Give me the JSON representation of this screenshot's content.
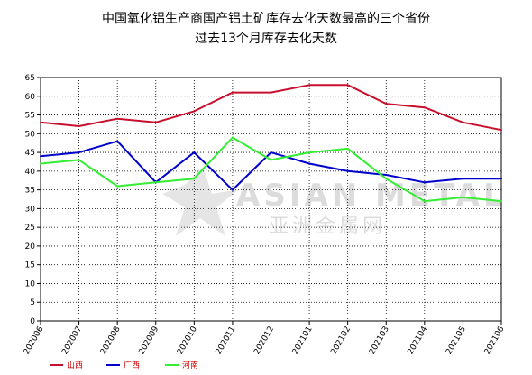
{
  "title": {
    "line1": "中国氧化铝生产商国产铝土矿库存去化天数最高的三个省份",
    "line2": "过去13个月库存去化天数"
  },
  "watermark": {
    "main": "ASIAN METAL",
    "sub": "亚洲金属网"
  },
  "chart_data": {
    "type": "line",
    "categories": [
      "202006",
      "202007",
      "202008",
      "202009",
      "202010",
      "202011",
      "202012",
      "202101",
      "202102",
      "202103",
      "202104",
      "202105",
      "202106"
    ],
    "series": [
      {
        "name": "山西",
        "color": "#c8102e",
        "values": [
          53,
          52,
          54,
          53,
          56,
          61,
          61,
          63,
          63,
          58,
          57,
          53,
          51
        ]
      },
      {
        "name": "广西",
        "color": "#0000cc",
        "values": [
          44,
          45,
          48,
          37,
          45,
          35,
          45,
          42,
          40,
          39,
          37,
          38,
          38
        ]
      },
      {
        "name": "河南",
        "color": "#33ee33",
        "values": [
          42,
          43,
          36,
          37,
          38,
          49,
          43,
          45,
          46,
          38,
          32,
          33,
          32
        ]
      }
    ],
    "ylim": [
      0,
      65
    ],
    "yticks": [
      0,
      5,
      10,
      15,
      20,
      25,
      30,
      35,
      40,
      45,
      50,
      55,
      60,
      65
    ],
    "grid": true,
    "legend_position": "bottom-left"
  }
}
